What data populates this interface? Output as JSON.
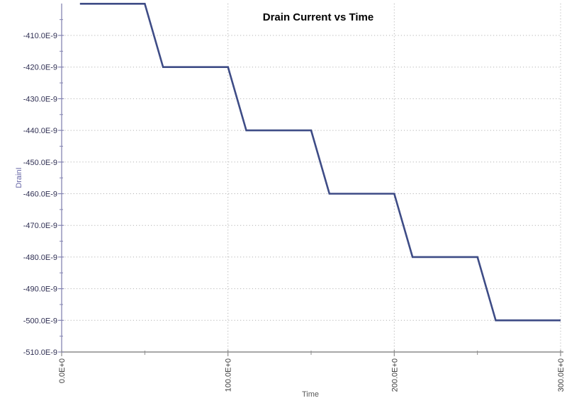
{
  "window": {
    "background": "#ffffff"
  },
  "chart_data": {
    "type": "line",
    "title": "Drain Current vs Time",
    "xlabel": "Time",
    "ylabel": "DrainI",
    "x_unit_notation": "E+0",
    "y_unit_notation": "E-9",
    "xlim": [
      0,
      300
    ],
    "ylim_nA": [
      -510,
      -400
    ],
    "grid": "dotted",
    "legend_position": "none",
    "x_tick_values": [
      0,
      100,
      200,
      300
    ],
    "x_tick_labels": [
      "0.0E+0",
      "100.0E+0",
      "200.0E+0",
      "300.0E+0"
    ],
    "x_minor_tick_values": [
      50,
      150,
      250
    ],
    "y_tick_values_nA": [
      -410,
      -420,
      -430,
      -440,
      -450,
      -460,
      -470,
      -480,
      -490,
      -500,
      -510
    ],
    "y_tick_labels": [
      "-410.0E-9",
      "-420.0E-9",
      "-430.0E-9",
      "-440.0E-9",
      "-450.0E-9",
      "-460.0E-9",
      "-470.0E-9",
      "-480.0E-9",
      "-490.0E-9",
      "-500.0E-9",
      "-510.0E-9"
    ],
    "y_minor_tick_values_nA": [
      -405,
      -415,
      -425,
      -435,
      -445,
      -455,
      -465,
      -475,
      -485,
      -495,
      -505
    ],
    "series": [
      {
        "name": "DrainI",
        "color": "#3e4c86",
        "shape": "staircase stepping down 20 nA every 50 time units with ~10 unit ramps",
        "points_t_vs_nA": [
          [
            11,
            -400
          ],
          [
            50,
            -400
          ],
          [
            61,
            -420
          ],
          [
            100,
            -420
          ],
          [
            111,
            -440
          ],
          [
            150,
            -440
          ],
          [
            161,
            -460
          ],
          [
            200,
            -460
          ],
          [
            211,
            -480
          ],
          [
            250,
            -480
          ],
          [
            261,
            -500
          ],
          [
            300,
            -500
          ]
        ]
      }
    ]
  },
  "colors": {
    "background": "#ffffff",
    "series_line": "#3e4c86",
    "grid_line": "#b4b4b4",
    "y_axis_line": "#8585b2",
    "x_axis_line": "#8c8c8c",
    "y_tick_mark": "#8585b2",
    "x_tick_mark": "#8c8c8c",
    "title_text": "#000000",
    "y_tick_text": "#2e2e52",
    "x_tick_text": "#3c3c3c",
    "ylabel_text": "#6868a8",
    "xlabel_text": "#5a5a5a"
  }
}
